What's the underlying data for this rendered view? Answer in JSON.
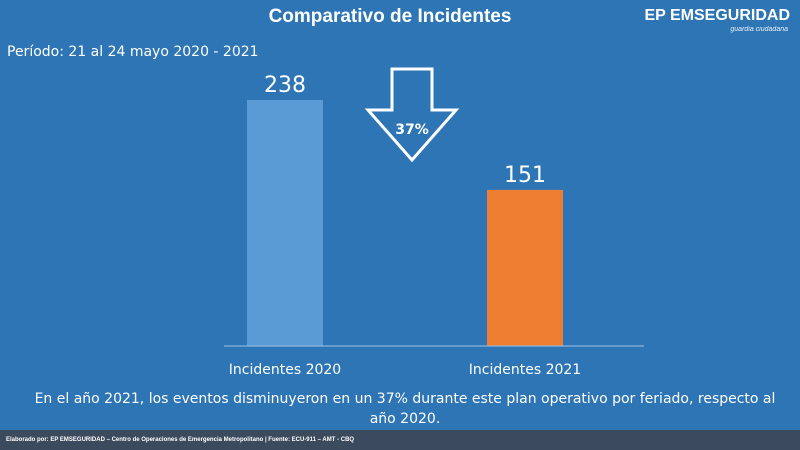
{
  "header": {
    "title": "Comparativo de Incidentes",
    "brand": "EP EMSEGURIDAD",
    "brand_tagline": "guardia ciudadana"
  },
  "period": "Período: 21 al 24 mayo 2020 - 2021",
  "chart_data": {
    "type": "bar",
    "categories": [
      "Incidentes 2020",
      "Incidentes 2021"
    ],
    "values": [
      238,
      151
    ],
    "bar_colors": [
      "#5b9bd5",
      "#ed7d31"
    ],
    "ylim": [
      0,
      260
    ],
    "change_label": "37%",
    "change_direction": "down",
    "grid": false,
    "legend": "none"
  },
  "note": "En el año 2021, los eventos disminuyeron en un 37% durante este plan operativo por feriado, respecto al año 2020.",
  "footer": "Elaborado por: EP EMSEGURIDAD – Centro de Operaciones de Emergencia Metropolitano | Fuente: ECU-911 – AMT - CBQ",
  "colors": {
    "background": "#2e75b6",
    "footer_bg": "#3c4a5e",
    "text": "#ffffff"
  }
}
